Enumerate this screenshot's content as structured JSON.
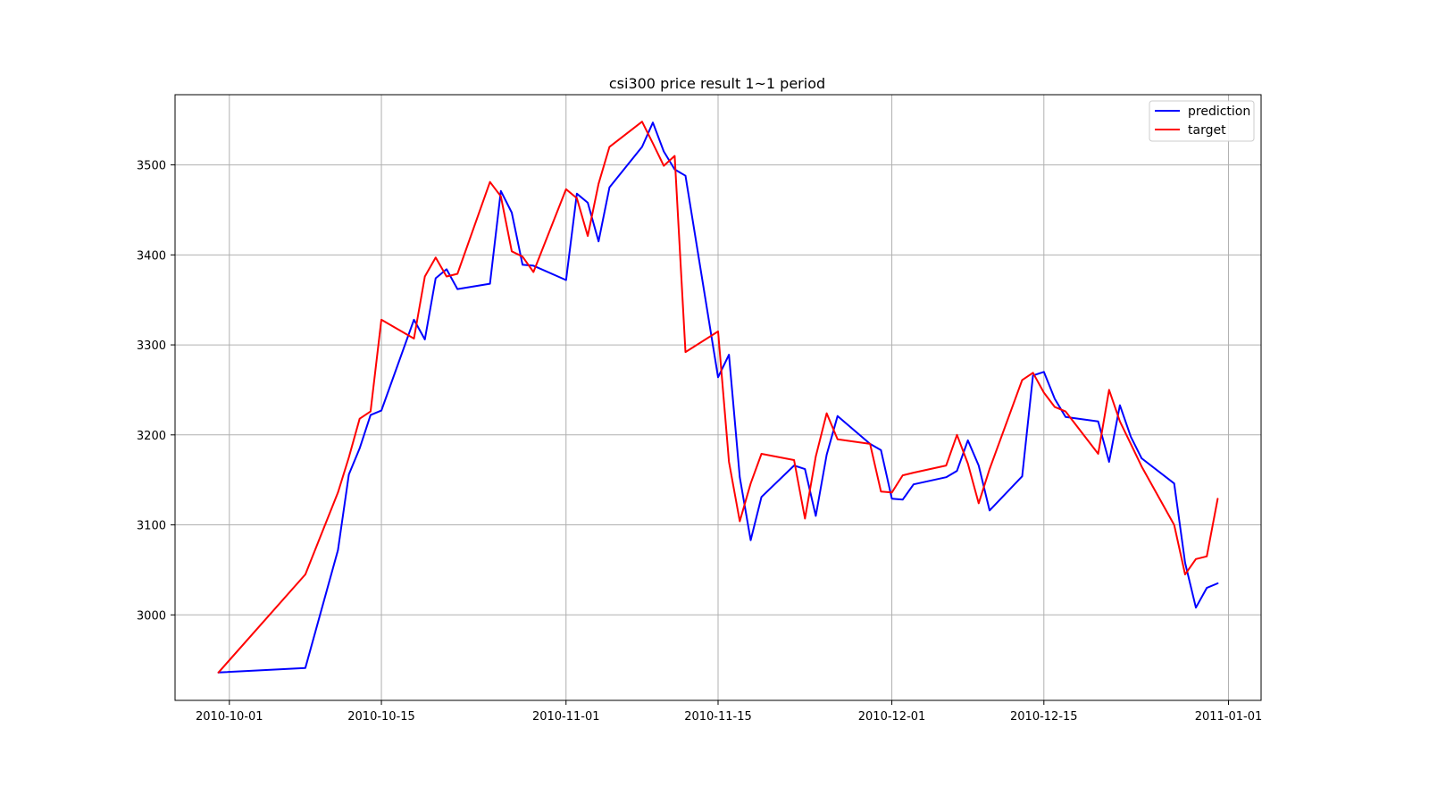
{
  "chart_data": {
    "type": "line",
    "title": "csi300 price result 1~1 period",
    "xlabel": "",
    "ylabel": "",
    "xlim": [
      "2010-09-26",
      "2011-01-04"
    ],
    "ylim": [
      2905,
      3578
    ],
    "x_ticks": [
      "2010-10-01",
      "2010-10-15",
      "2010-11-01",
      "2010-11-15",
      "2010-12-01",
      "2010-12-15",
      "2011-01-01"
    ],
    "y_ticks": [
      3000,
      3100,
      3200,
      3300,
      3400,
      3500
    ],
    "grid": true,
    "legend_position": "top-right",
    "series": [
      {
        "name": "prediction",
        "color": "#0000ff",
        "points": [
          [
            "2010-09-30",
            2936
          ],
          [
            "2010-10-08",
            2941
          ],
          [
            "2010-10-11",
            3072
          ],
          [
            "2010-10-12",
            3156
          ],
          [
            "2010-10-13",
            3185
          ],
          [
            "2010-10-14",
            3222
          ],
          [
            "2010-10-15",
            3227
          ],
          [
            "2010-10-18",
            3328
          ],
          [
            "2010-10-19",
            3306
          ],
          [
            "2010-10-20",
            3374
          ],
          [
            "2010-10-21",
            3384
          ],
          [
            "2010-10-22",
            3362
          ],
          [
            "2010-10-25",
            3368
          ],
          [
            "2010-10-26",
            3471
          ],
          [
            "2010-10-27",
            3447
          ],
          [
            "2010-10-28",
            3389
          ],
          [
            "2010-10-29",
            3388
          ],
          [
            "2010-11-01",
            3372
          ],
          [
            "2010-11-02",
            3468
          ],
          [
            "2010-11-03",
            3458
          ],
          [
            "2010-11-04",
            3415
          ],
          [
            "2010-11-05",
            3475
          ],
          [
            "2010-11-08",
            3520
          ],
          [
            "2010-11-09",
            3547
          ],
          [
            "2010-11-10",
            3515
          ],
          [
            "2010-11-11",
            3495
          ],
          [
            "2010-11-12",
            3488
          ],
          [
            "2010-11-15",
            3264
          ],
          [
            "2010-11-16",
            3289
          ],
          [
            "2010-11-17",
            3153
          ],
          [
            "2010-11-18",
            3083
          ],
          [
            "2010-11-19",
            3131
          ],
          [
            "2010-11-22",
            3166
          ],
          [
            "2010-11-23",
            3162
          ],
          [
            "2010-11-24",
            3110
          ],
          [
            "2010-11-25",
            3178
          ],
          [
            "2010-11-26",
            3221
          ],
          [
            "2010-11-29",
            3190
          ],
          [
            "2010-11-30",
            3183
          ],
          [
            "2010-12-01",
            3129
          ],
          [
            "2010-12-02",
            3128
          ],
          [
            "2010-12-03",
            3145
          ],
          [
            "2010-12-06",
            3153
          ],
          [
            "2010-12-07",
            3160
          ],
          [
            "2010-12-08",
            3194
          ],
          [
            "2010-12-09",
            3166
          ],
          [
            "2010-12-10",
            3116
          ],
          [
            "2010-12-13",
            3154
          ],
          [
            "2010-12-14",
            3266
          ],
          [
            "2010-12-15",
            3270
          ],
          [
            "2010-12-16",
            3240
          ],
          [
            "2010-12-17",
            3220
          ],
          [
            "2010-12-20",
            3215
          ],
          [
            "2010-12-21",
            3170
          ],
          [
            "2010-12-22",
            3233
          ],
          [
            "2010-12-23",
            3198
          ],
          [
            "2010-12-24",
            3174
          ],
          [
            "2010-12-27",
            3146
          ],
          [
            "2010-12-28",
            3058
          ],
          [
            "2010-12-29",
            3008
          ],
          [
            "2010-12-30",
            3030
          ],
          [
            "2010-12-31",
            3035
          ]
        ]
      },
      {
        "name": "target",
        "color": "#ff0000",
        "points": [
          [
            "2010-09-30",
            2936
          ],
          [
            "2010-10-08",
            3045
          ],
          [
            "2010-10-11",
            3136
          ],
          [
            "2010-10-12",
            3175
          ],
          [
            "2010-10-13",
            3218
          ],
          [
            "2010-10-14",
            3226
          ],
          [
            "2010-10-15",
            3328
          ],
          [
            "2010-10-18",
            3307
          ],
          [
            "2010-10-19",
            3376
          ],
          [
            "2010-10-20",
            3397
          ],
          [
            "2010-10-21",
            3376
          ],
          [
            "2010-10-22",
            3379
          ],
          [
            "2010-10-25",
            3481
          ],
          [
            "2010-10-26",
            3465
          ],
          [
            "2010-10-27",
            3404
          ],
          [
            "2010-10-28",
            3398
          ],
          [
            "2010-10-29",
            3381
          ],
          [
            "2010-11-01",
            3473
          ],
          [
            "2010-11-02",
            3463
          ],
          [
            "2010-11-03",
            3421
          ],
          [
            "2010-11-04",
            3479
          ],
          [
            "2010-11-05",
            3520
          ],
          [
            "2010-11-08",
            3548
          ],
          [
            "2010-11-09",
            3524
          ],
          [
            "2010-11-10",
            3499
          ],
          [
            "2010-11-11",
            3510
          ],
          [
            "2010-11-12",
            3292
          ],
          [
            "2010-11-15",
            3315
          ],
          [
            "2010-11-16",
            3170
          ],
          [
            "2010-11-17",
            3104
          ],
          [
            "2010-11-18",
            3146
          ],
          [
            "2010-11-19",
            3179
          ],
          [
            "2010-11-22",
            3172
          ],
          [
            "2010-11-23",
            3107
          ],
          [
            "2010-11-24",
            3176
          ],
          [
            "2010-11-25",
            3224
          ],
          [
            "2010-11-26",
            3195
          ],
          [
            "2010-11-29",
            3190
          ],
          [
            "2010-11-30",
            3137
          ],
          [
            "2010-12-01",
            3136
          ],
          [
            "2010-12-02",
            3155
          ],
          [
            "2010-12-03",
            3158
          ],
          [
            "2010-12-06",
            3166
          ],
          [
            "2010-12-07",
            3200
          ],
          [
            "2010-12-08",
            3168
          ],
          [
            "2010-12-09",
            3124
          ],
          [
            "2010-12-10",
            3162
          ],
          [
            "2010-12-13",
            3261
          ],
          [
            "2010-12-14",
            3269
          ],
          [
            "2010-12-15",
            3247
          ],
          [
            "2010-12-16",
            3231
          ],
          [
            "2010-12-17",
            3226
          ],
          [
            "2010-12-20",
            3179
          ],
          [
            "2010-12-21",
            3250
          ],
          [
            "2010-12-22",
            3215
          ],
          [
            "2010-12-23",
            3190
          ],
          [
            "2010-12-24",
            3165
          ],
          [
            "2010-12-27",
            3100
          ],
          [
            "2010-12-28",
            3045
          ],
          [
            "2010-12-29",
            3062
          ],
          [
            "2010-12-30",
            3065
          ],
          [
            "2010-12-31",
            3129
          ]
        ]
      }
    ]
  }
}
